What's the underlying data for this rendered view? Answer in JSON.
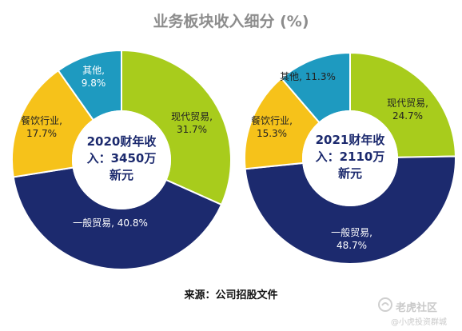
{
  "title": "业务板块收入细分 (%)",
  "source": "来源：公司招股文件",
  "watermark": {
    "brand": "老虎社区",
    "user": "@小虎投资群城"
  },
  "colors": {
    "modern_trade": "#a8cc1c",
    "general_trade": "#1c2a6e",
    "catering": "#f6c21a",
    "other": "#1e9ac0",
    "stroke": "#ffffff"
  },
  "chart_data": [
    {
      "type": "pie",
      "center_label": [
        "2020财年收",
        "入：3450万",
        "新元"
      ],
      "slices": [
        {
          "key": "modern_trade",
          "label_lines": [
            "现代贸易,",
            "31.7%"
          ],
          "value": 31.7
        },
        {
          "key": "general_trade",
          "label_lines": [
            "一般贸易, 40.8%"
          ],
          "value": 40.8
        },
        {
          "key": "catering",
          "label_lines": [
            "餐饮行业,",
            "17.7%"
          ],
          "value": 17.7
        },
        {
          "key": "other",
          "label_lines": [
            "其他,",
            "9.8%"
          ],
          "value": 9.8
        }
      ]
    },
    {
      "type": "pie",
      "center_label": [
        "2021财年收",
        "入：2110万",
        "新元"
      ],
      "slices": [
        {
          "key": "modern_trade",
          "label_lines": [
            "现代贸易,",
            "24.7%"
          ],
          "value": 24.7
        },
        {
          "key": "general_trade",
          "label_lines": [
            "一般贸易,",
            "48.7%"
          ],
          "value": 48.7
        },
        {
          "key": "catering",
          "label_lines": [
            "餐饮行业,",
            "15.3%"
          ],
          "value": 15.3
        },
        {
          "key": "other",
          "label_lines": [
            "其他, 11.3%"
          ],
          "value": 11.3
        }
      ]
    }
  ]
}
